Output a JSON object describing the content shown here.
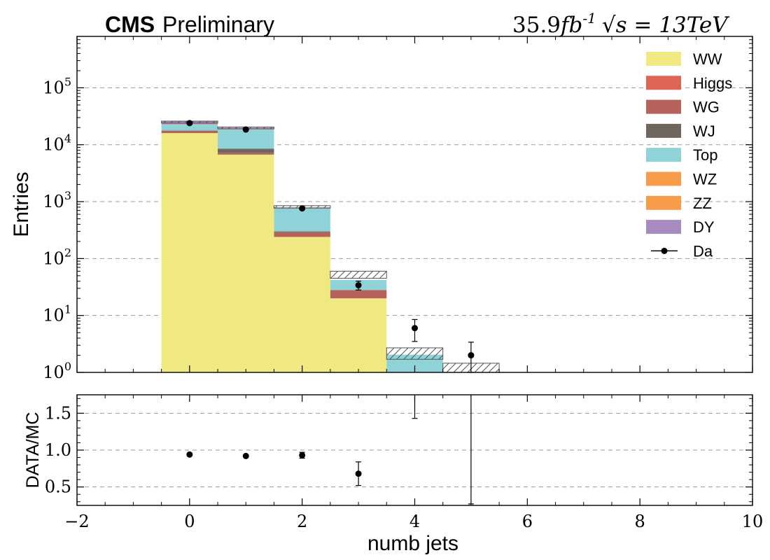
{
  "header": {
    "cms": "CMS",
    "preliminary": "Preliminary",
    "lumi_value": "35.9",
    "lumi_unit": "fb",
    "lumi_exp": "-1",
    "sqrt_s": "s",
    "energy": " = 13TeV"
  },
  "chart_data": [
    {
      "panel": "main",
      "type": "bar",
      "stacked": true,
      "ylabel": "Entries",
      "yscale": "log",
      "ylim": [
        1,
        800000
      ],
      "xlim": [
        -2,
        10
      ],
      "grid": true,
      "legend_position": "top-right",
      "bins": [
        0,
        1,
        2,
        3,
        4,
        5
      ],
      "series": [
        {
          "name": "WW",
          "color": "#f0e982",
          "values": [
            16000,
            6700,
            240,
            20,
            1,
            0
          ]
        },
        {
          "name": "Higgs",
          "color": "#dd6556",
          "values": [
            0,
            0,
            0,
            0,
            0,
            0
          ]
        },
        {
          "name": "WG",
          "color": "#b5625a",
          "values": [
            1500,
            500,
            50,
            8,
            0,
            0
          ]
        },
        {
          "name": "WJ",
          "color": "#6f665e",
          "values": [
            200,
            1300,
            10,
            0,
            0,
            0
          ]
        },
        {
          "name": "Top",
          "color": "#8fd3d8",
          "values": [
            4800,
            10000,
            480,
            14,
            1.05,
            0
          ]
        },
        {
          "name": "WZ",
          "color": "#f79c4a",
          "values": [
            300,
            200,
            10,
            0,
            0,
            0
          ]
        },
        {
          "name": "ZZ",
          "color": "#f79c4a",
          "values": [
            0,
            0,
            0,
            0,
            0,
            0
          ]
        },
        {
          "name": "DY",
          "color": "#a78bc0",
          "values": [
            3200,
            1300,
            10,
            0,
            0,
            0
          ]
        }
      ],
      "uncertainty_band": {
        "low": [
          24000,
          19000,
          770,
          45,
          1.7,
          1
        ],
        "high": [
          26000,
          20500,
          850,
          60,
          2.7,
          1.45
        ]
      },
      "data": {
        "name": "Da",
        "values": [
          24000,
          18500,
          760,
          34,
          6,
          2
        ],
        "err_low": [
          155,
          136,
          28,
          6,
          2.5,
          1.3
        ],
        "err_high": [
          155,
          136,
          28,
          6,
          2.5,
          1.4
        ]
      },
      "xticks": [
        -2,
        0,
        2,
        4,
        6,
        8,
        10
      ],
      "yticks": [
        1,
        10,
        100,
        1000,
        10000,
        100000
      ],
      "ytick_exponents": [
        "0",
        "1",
        "2",
        "3",
        "4",
        "5"
      ]
    },
    {
      "panel": "ratio",
      "type": "scatter",
      "xlabel": "numb jets",
      "ylabel": "DATA/MC",
      "xlim": [
        -2,
        10
      ],
      "ylim": [
        0.25,
        1.75
      ],
      "grid": true,
      "x": [
        0,
        1,
        2,
        3
      ],
      "y": [
        0.94,
        0.92,
        0.93,
        0.68
      ],
      "err": [
        0.012,
        0.014,
        0.04,
        0.16
      ],
      "extra_errorbars": [
        {
          "x": 4,
          "low": 1.43,
          "high": 1.75
        },
        {
          "x": 5,
          "low": 0.27,
          "high": 1.75
        }
      ],
      "xticks": [
        -2,
        0,
        2,
        4,
        6,
        8,
        10
      ],
      "xtick_labels": [
        "−2",
        "0",
        "2",
        "4",
        "6",
        "8",
        "10"
      ],
      "yticks": [
        0.5,
        1.0,
        1.5
      ],
      "ytick_labels": [
        "0.5",
        "1.0",
        "1.5"
      ]
    }
  ]
}
